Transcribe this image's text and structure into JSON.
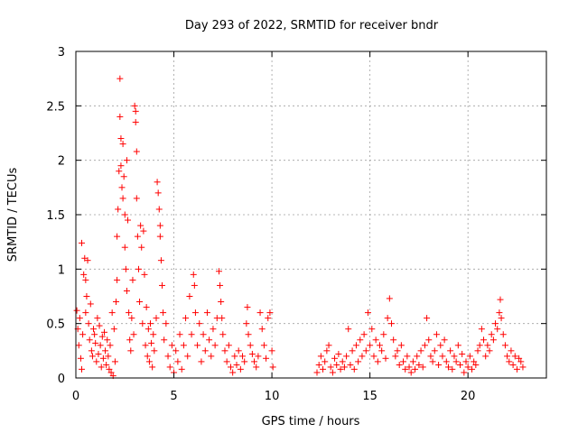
{
  "chart_data": {
    "type": "scatter",
    "title": "Day 293 of 2022, SRMTID for receiver bndr",
    "xlabel": "GPS time / hours",
    "ylabel": "SRMTID / TECUs",
    "xlim": [
      0,
      24
    ],
    "ylim": [
      0,
      3
    ],
    "xticks": [
      0,
      5,
      10,
      15,
      20
    ],
    "yticks": [
      0,
      0.5,
      1,
      1.5,
      2,
      2.5,
      3
    ],
    "xtick_labels": [
      "0",
      "5",
      "10",
      "15",
      "20"
    ],
    "ytick_labels": [
      "0",
      "0.5",
      "1",
      "1.5",
      "2",
      "2.5",
      "3"
    ],
    "grid": true,
    "marker": "+",
    "series": [
      {
        "name": "SRMTID",
        "color": "#ff0000",
        "points": [
          [
            0.05,
            0.62
          ],
          [
            0.1,
            0.45
          ],
          [
            0.15,
            0.3
          ],
          [
            0.2,
            0.55
          ],
          [
            0.25,
            0.18
          ],
          [
            0.3,
            0.08
          ],
          [
            0.3,
            1.24
          ],
          [
            0.35,
            0.4
          ],
          [
            0.4,
            0.95
          ],
          [
            0.45,
            1.1
          ],
          [
            0.5,
            0.6
          ],
          [
            0.5,
            0.9
          ],
          [
            0.55,
            0.75
          ],
          [
            0.6,
            1.08
          ],
          [
            0.65,
            0.5
          ],
          [
            0.7,
            0.35
          ],
          [
            0.75,
            0.68
          ],
          [
            0.8,
            0.25
          ],
          [
            0.85,
            0.2
          ],
          [
            0.9,
            0.45
          ],
          [
            0.95,
            0.4
          ],
          [
            1.0,
            0.32
          ],
          [
            1.05,
            0.15
          ],
          [
            1.1,
            0.55
          ],
          [
            1.15,
            0.22
          ],
          [
            1.2,
            0.48
          ],
          [
            1.25,
            0.3
          ],
          [
            1.3,
            0.1
          ],
          [
            1.35,
            0.38
          ],
          [
            1.4,
            0.18
          ],
          [
            1.45,
            0.42
          ],
          [
            1.5,
            0.25
          ],
          [
            1.55,
            0.12
          ],
          [
            1.6,
            0.35
          ],
          [
            1.65,
            0.2
          ],
          [
            1.7,
            0.08
          ],
          [
            1.75,
            0.3
          ],
          [
            1.8,
            0.05
          ],
          [
            1.85,
            0.6
          ],
          [
            1.9,
            0.02
          ],
          [
            1.95,
            0.45
          ],
          [
            2.0,
            0.15
          ],
          [
            2.05,
            0.7
          ],
          [
            2.1,
            0.9
          ],
          [
            2.1,
            1.3
          ],
          [
            2.15,
            1.55
          ],
          [
            2.2,
            1.9
          ],
          [
            2.25,
            2.75
          ],
          [
            2.25,
            2.4
          ],
          [
            2.3,
            2.2
          ],
          [
            2.3,
            1.95
          ],
          [
            2.35,
            1.75
          ],
          [
            2.4,
            1.65
          ],
          [
            2.4,
            2.15
          ],
          [
            2.45,
            1.85
          ],
          [
            2.5,
            1.5
          ],
          [
            2.5,
            1.2
          ],
          [
            2.55,
            1.0
          ],
          [
            2.6,
            2.0
          ],
          [
            2.6,
            0.8
          ],
          [
            2.65,
            1.45
          ],
          [
            2.7,
            0.6
          ],
          [
            2.75,
            0.35
          ],
          [
            2.8,
            0.25
          ],
          [
            2.85,
            0.55
          ],
          [
            2.9,
            0.9
          ],
          [
            2.95,
            0.4
          ],
          [
            3.0,
            2.5
          ],
          [
            3.05,
            2.45
          ],
          [
            3.05,
            2.35
          ],
          [
            3.1,
            2.08
          ],
          [
            3.1,
            1.65
          ],
          [
            3.15,
            1.3
          ],
          [
            3.2,
            1.0
          ],
          [
            3.25,
            0.7
          ],
          [
            3.3,
            1.4
          ],
          [
            3.35,
            1.2
          ],
          [
            3.4,
            0.5
          ],
          [
            3.45,
            1.35
          ],
          [
            3.5,
            0.95
          ],
          [
            3.55,
            0.3
          ],
          [
            3.6,
            0.65
          ],
          [
            3.65,
            0.2
          ],
          [
            3.7,
            0.45
          ],
          [
            3.75,
            0.15
          ],
          [
            3.8,
            0.5
          ],
          [
            3.85,
            0.32
          ],
          [
            3.9,
            0.1
          ],
          [
            3.95,
            0.4
          ],
          [
            4.0,
            0.25
          ],
          [
            4.1,
            0.55
          ],
          [
            4.15,
            1.8
          ],
          [
            4.2,
            1.7
          ],
          [
            4.25,
            1.55
          ],
          [
            4.3,
            1.4
          ],
          [
            4.3,
            1.3
          ],
          [
            4.35,
            1.08
          ],
          [
            4.4,
            0.85
          ],
          [
            4.45,
            0.6
          ],
          [
            4.5,
            0.35
          ],
          [
            4.6,
            0.5
          ],
          [
            4.7,
            0.2
          ],
          [
            4.8,
            0.1
          ],
          [
            4.9,
            0.3
          ],
          [
            5.0,
            0.05
          ],
          [
            5.1,
            0.25
          ],
          [
            5.2,
            0.15
          ],
          [
            5.3,
            0.4
          ],
          [
            5.4,
            0.08
          ],
          [
            5.5,
            0.3
          ],
          [
            5.6,
            0.55
          ],
          [
            5.7,
            0.2
          ],
          [
            5.8,
            0.75
          ],
          [
            5.9,
            0.4
          ],
          [
            6.0,
            0.95
          ],
          [
            6.05,
            0.85
          ],
          [
            6.1,
            0.6
          ],
          [
            6.2,
            0.3
          ],
          [
            6.3,
            0.5
          ],
          [
            6.4,
            0.15
          ],
          [
            6.5,
            0.4
          ],
          [
            6.6,
            0.25
          ],
          [
            6.7,
            0.6
          ],
          [
            6.8,
            0.35
          ],
          [
            6.9,
            0.2
          ],
          [
            7.0,
            0.45
          ],
          [
            7.1,
            0.3
          ],
          [
            7.2,
            0.55
          ],
          [
            7.3,
            0.98
          ],
          [
            7.35,
            0.85
          ],
          [
            7.4,
            0.7
          ],
          [
            7.45,
            0.55
          ],
          [
            7.5,
            0.4
          ],
          [
            7.6,
            0.25
          ],
          [
            7.7,
            0.15
          ],
          [
            7.8,
            0.3
          ],
          [
            7.9,
            0.1
          ],
          [
            8.0,
            0.05
          ],
          [
            8.1,
            0.2
          ],
          [
            8.2,
            0.12
          ],
          [
            8.3,
            0.25
          ],
          [
            8.4,
            0.08
          ],
          [
            8.5,
            0.2
          ],
          [
            8.6,
            0.15
          ],
          [
            8.7,
            0.5
          ],
          [
            8.75,
            0.65
          ],
          [
            8.8,
            0.4
          ],
          [
            8.9,
            0.3
          ],
          [
            9.0,
            0.22
          ],
          [
            9.1,
            0.15
          ],
          [
            9.2,
            0.1
          ],
          [
            9.3,
            0.2
          ],
          [
            9.4,
            0.6
          ],
          [
            9.5,
            0.45
          ],
          [
            9.6,
            0.3
          ],
          [
            9.7,
            0.18
          ],
          [
            9.8,
            0.55
          ],
          [
            9.9,
            0.6
          ],
          [
            10.0,
            0.25
          ],
          [
            10.05,
            0.1
          ],
          [
            12.3,
            0.05
          ],
          [
            12.4,
            0.12
          ],
          [
            12.5,
            0.2
          ],
          [
            12.6,
            0.08
          ],
          [
            12.7,
            0.15
          ],
          [
            12.8,
            0.25
          ],
          [
            12.9,
            0.3
          ],
          [
            13.0,
            0.1
          ],
          [
            13.1,
            0.05
          ],
          [
            13.2,
            0.18
          ],
          [
            13.3,
            0.12
          ],
          [
            13.4,
            0.22
          ],
          [
            13.5,
            0.08
          ],
          [
            13.6,
            0.15
          ],
          [
            13.7,
            0.1
          ],
          [
            13.8,
            0.2
          ],
          [
            13.9,
            0.45
          ],
          [
            14.0,
            0.12
          ],
          [
            14.1,
            0.25
          ],
          [
            14.2,
            0.08
          ],
          [
            14.3,
            0.3
          ],
          [
            14.4,
            0.15
          ],
          [
            14.5,
            0.35
          ],
          [
            14.6,
            0.2
          ],
          [
            14.7,
            0.4
          ],
          [
            14.8,
            0.25
          ],
          [
            14.9,
            0.6
          ],
          [
            15.0,
            0.3
          ],
          [
            15.1,
            0.45
          ],
          [
            15.2,
            0.2
          ],
          [
            15.3,
            0.35
          ],
          [
            15.4,
            0.15
          ],
          [
            15.5,
            0.3
          ],
          [
            15.6,
            0.25
          ],
          [
            15.7,
            0.4
          ],
          [
            15.8,
            0.18
          ],
          [
            15.9,
            0.55
          ],
          [
            16.0,
            0.73
          ],
          [
            16.1,
            0.5
          ],
          [
            16.2,
            0.35
          ],
          [
            16.3,
            0.2
          ],
          [
            16.4,
            0.25
          ],
          [
            16.5,
            0.12
          ],
          [
            16.6,
            0.3
          ],
          [
            16.7,
            0.15
          ],
          [
            16.8,
            0.08
          ],
          [
            16.9,
            0.2
          ],
          [
            17.0,
            0.1
          ],
          [
            17.1,
            0.05
          ],
          [
            17.2,
            0.15
          ],
          [
            17.3,
            0.08
          ],
          [
            17.4,
            0.2
          ],
          [
            17.5,
            0.12
          ],
          [
            17.6,
            0.25
          ],
          [
            17.7,
            0.1
          ],
          [
            17.8,
            0.3
          ],
          [
            17.9,
            0.55
          ],
          [
            18.0,
            0.35
          ],
          [
            18.1,
            0.2
          ],
          [
            18.2,
            0.15
          ],
          [
            18.3,
            0.25
          ],
          [
            18.4,
            0.4
          ],
          [
            18.5,
            0.12
          ],
          [
            18.6,
            0.3
          ],
          [
            18.7,
            0.2
          ],
          [
            18.8,
            0.35
          ],
          [
            18.9,
            0.15
          ],
          [
            19.0,
            0.1
          ],
          [
            19.1,
            0.25
          ],
          [
            19.2,
            0.08
          ],
          [
            19.3,
            0.2
          ],
          [
            19.4,
            0.15
          ],
          [
            19.5,
            0.3
          ],
          [
            19.6,
            0.12
          ],
          [
            19.7,
            0.22
          ],
          [
            19.8,
            0.05
          ],
          [
            19.9,
            0.15
          ],
          [
            20.0,
            0.1
          ],
          [
            20.1,
            0.2
          ],
          [
            20.2,
            0.08
          ],
          [
            20.3,
            0.15
          ],
          [
            20.4,
            0.12
          ],
          [
            20.5,
            0.25
          ],
          [
            20.6,
            0.3
          ],
          [
            20.7,
            0.45
          ],
          [
            20.8,
            0.35
          ],
          [
            20.9,
            0.2
          ],
          [
            21.0,
            0.3
          ],
          [
            21.1,
            0.25
          ],
          [
            21.2,
            0.4
          ],
          [
            21.3,
            0.35
          ],
          [
            21.4,
            0.5
          ],
          [
            21.5,
            0.45
          ],
          [
            21.6,
            0.6
          ],
          [
            21.65,
            0.72
          ],
          [
            21.7,
            0.55
          ],
          [
            21.8,
            0.4
          ],
          [
            21.9,
            0.3
          ],
          [
            22.0,
            0.2
          ],
          [
            22.1,
            0.15
          ],
          [
            22.2,
            0.25
          ],
          [
            22.3,
            0.12
          ],
          [
            22.4,
            0.2
          ],
          [
            22.5,
            0.08
          ],
          [
            22.6,
            0.18
          ],
          [
            22.7,
            0.15
          ],
          [
            22.8,
            0.1
          ]
        ]
      }
    ]
  }
}
